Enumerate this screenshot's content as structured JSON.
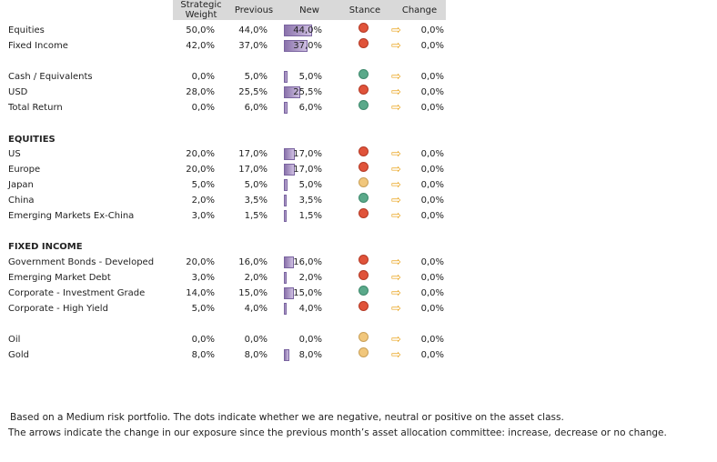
{
  "headers": {
    "strategic_weight": "Strategic Weight",
    "previous": "Previous",
    "new": "New",
    "stance": "Stance",
    "change": "Change"
  },
  "rows": [
    {
      "label": "Equities",
      "sw": "50,0%",
      "prev": "44,0%",
      "new": "44,0%",
      "new_pct": 44.0,
      "stance": "negative",
      "arrow": "no-change",
      "change": "0,0%"
    },
    {
      "label": "Fixed Income",
      "sw": "42,0%",
      "prev": "37,0%",
      "new": "37,0%",
      "new_pct": 37.0,
      "stance": "negative",
      "arrow": "no-change",
      "change": "0,0%"
    },
    {
      "label": "Cash / Equivalents",
      "sw": "0,0%",
      "prev": "5,0%",
      "new": "5,0%",
      "new_pct": 5.0,
      "stance": "positive",
      "arrow": "no-change",
      "change": "0,0%"
    },
    {
      "label": "USD",
      "sw": "28,0%",
      "prev": "25,5%",
      "new": "25,5%",
      "new_pct": 25.5,
      "stance": "negative",
      "arrow": "no-change",
      "change": "0,0%"
    },
    {
      "label": "Total Return",
      "sw": "0,0%",
      "prev": "6,0%",
      "new": "6,0%",
      "new_pct": 6.0,
      "stance": "positive",
      "arrow": "no-change",
      "change": "0,0%"
    },
    {
      "label": "EQUITIES",
      "section": true
    },
    {
      "label": "US",
      "sw": "20,0%",
      "prev": "17,0%",
      "new": "17,0%",
      "new_pct": 17.0,
      "stance": "negative",
      "arrow": "no-change",
      "change": "0,0%"
    },
    {
      "label": "Europe",
      "sw": "20,0%",
      "prev": "17,0%",
      "new": "17,0%",
      "new_pct": 17.0,
      "stance": "negative",
      "arrow": "no-change",
      "change": "0,0%"
    },
    {
      "label": "Japan",
      "sw": "5,0%",
      "prev": "5,0%",
      "new": "5,0%",
      "new_pct": 5.0,
      "stance": "neutral",
      "arrow": "no-change",
      "change": "0,0%"
    },
    {
      "label": "China",
      "sw": "2,0%",
      "prev": "3,5%",
      "new": "3,5%",
      "new_pct": 3.5,
      "stance": "positive",
      "arrow": "no-change",
      "change": "0,0%"
    },
    {
      "label": "Emerging Markets Ex-China",
      "sw": "3,0%",
      "prev": "1,5%",
      "new": "1,5%",
      "new_pct": 1.5,
      "stance": "negative",
      "arrow": "no-change",
      "change": "0,0%"
    },
    {
      "label": "FIXED INCOME",
      "section": true
    },
    {
      "label": "Government Bonds - Developed",
      "sw": "20,0%",
      "prev": "16,0%",
      "new": "16,0%",
      "new_pct": 16.0,
      "stance": "negative",
      "arrow": "no-change",
      "change": "0,0%"
    },
    {
      "label": "Emerging Market Debt",
      "sw": "3,0%",
      "prev": "2,0%",
      "new": "2,0%",
      "new_pct": 2.0,
      "stance": "negative",
      "arrow": "no-change",
      "change": "0,0%"
    },
    {
      "label": "Corporate - Investment Grade",
      "sw": "14,0%",
      "prev": "15,0%",
      "new": "15,0%",
      "new_pct": 15.0,
      "stance": "positive",
      "arrow": "no-change",
      "change": "0,0%"
    },
    {
      "label": "Corporate - High Yield",
      "sw": "5,0%",
      "prev": "4,0%",
      "new": "4,0%",
      "new_pct": 4.0,
      "stance": "negative",
      "arrow": "no-change",
      "change": "0,0%"
    },
    {
      "label": "Oil",
      "sw": "0,0%",
      "prev": "0,0%",
      "new": "0,0%",
      "new_pct": 0.0,
      "stance": "neutral",
      "arrow": "no-change",
      "change": "0,0%"
    },
    {
      "label": "Gold",
      "sw": "8,0%",
      "prev": "8,0%",
      "new": "8,0%",
      "new_pct": 8.0,
      "stance": "neutral",
      "arrow": "no-change",
      "change": "0,0%"
    }
  ],
  "notes": {
    "line1": "Based on a Medium risk portfolio. The dots indicate whether we are negative, neutral or positive on the asset class.",
    "line2": "The  arrows indicate the change in our exposure since the previous month’s asset allocation committee: increase, decrease or no change."
  },
  "colors": {
    "negative": "#e0533a",
    "neutral": "#f1c77c",
    "positive": "#5aa98a",
    "arrow": "#e9a21a",
    "bar": "#8a72ab",
    "header_bg": "#d9d9d9"
  }
}
